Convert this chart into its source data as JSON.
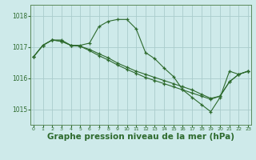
{
  "bg_color": "#ceeaea",
  "grid_color": "#aacccc",
  "line_color": "#2d6a2d",
  "xlabel": "Graphe pression niveau de la mer (hPa)",
  "xlabel_fontsize": 7.5,
  "yticks": [
    1015,
    1016,
    1017,
    1018
  ],
  "ylim": [
    1014.5,
    1018.35
  ],
  "xlim": [
    -0.3,
    23.3
  ],
  "series": [
    {
      "y": [
        1016.68,
        1017.05,
        1017.22,
        1017.22,
        1017.05,
        1017.05,
        1017.12,
        1017.65,
        1017.82,
        1017.88,
        1017.88,
        1017.58,
        1016.82,
        1016.62,
        1016.32,
        1016.05,
        1015.62,
        1015.38,
        1015.15,
        1014.92,
        1015.38,
        1016.22,
        1016.12,
        1016.22
      ],
      "marker": true
    },
    {
      "y": [
        1016.68,
        1017.05,
        1017.22,
        1017.18,
        1017.05,
        1017.02,
        1016.88,
        1016.72,
        1016.58,
        1016.42,
        1016.28,
        1016.15,
        1016.02,
        1015.92,
        1015.82,
        1015.72,
        1015.62,
        1015.52,
        1015.42,
        1015.32,
        1015.42,
        1015.88,
        1016.12,
        1016.22
      ],
      "marker": true
    },
    {
      "y": [
        1016.68,
        1017.05,
        1017.22,
        1017.18,
        1017.05,
        1017.02,
        1016.92,
        1016.78,
        1016.65,
        1016.48,
        1016.35,
        1016.22,
        1016.12,
        1016.02,
        1015.92,
        1015.82,
        1015.72,
        1015.62,
        1015.48,
        1015.35,
        1015.42,
        1015.88,
        1016.12,
        1016.22
      ],
      "marker": true
    }
  ]
}
